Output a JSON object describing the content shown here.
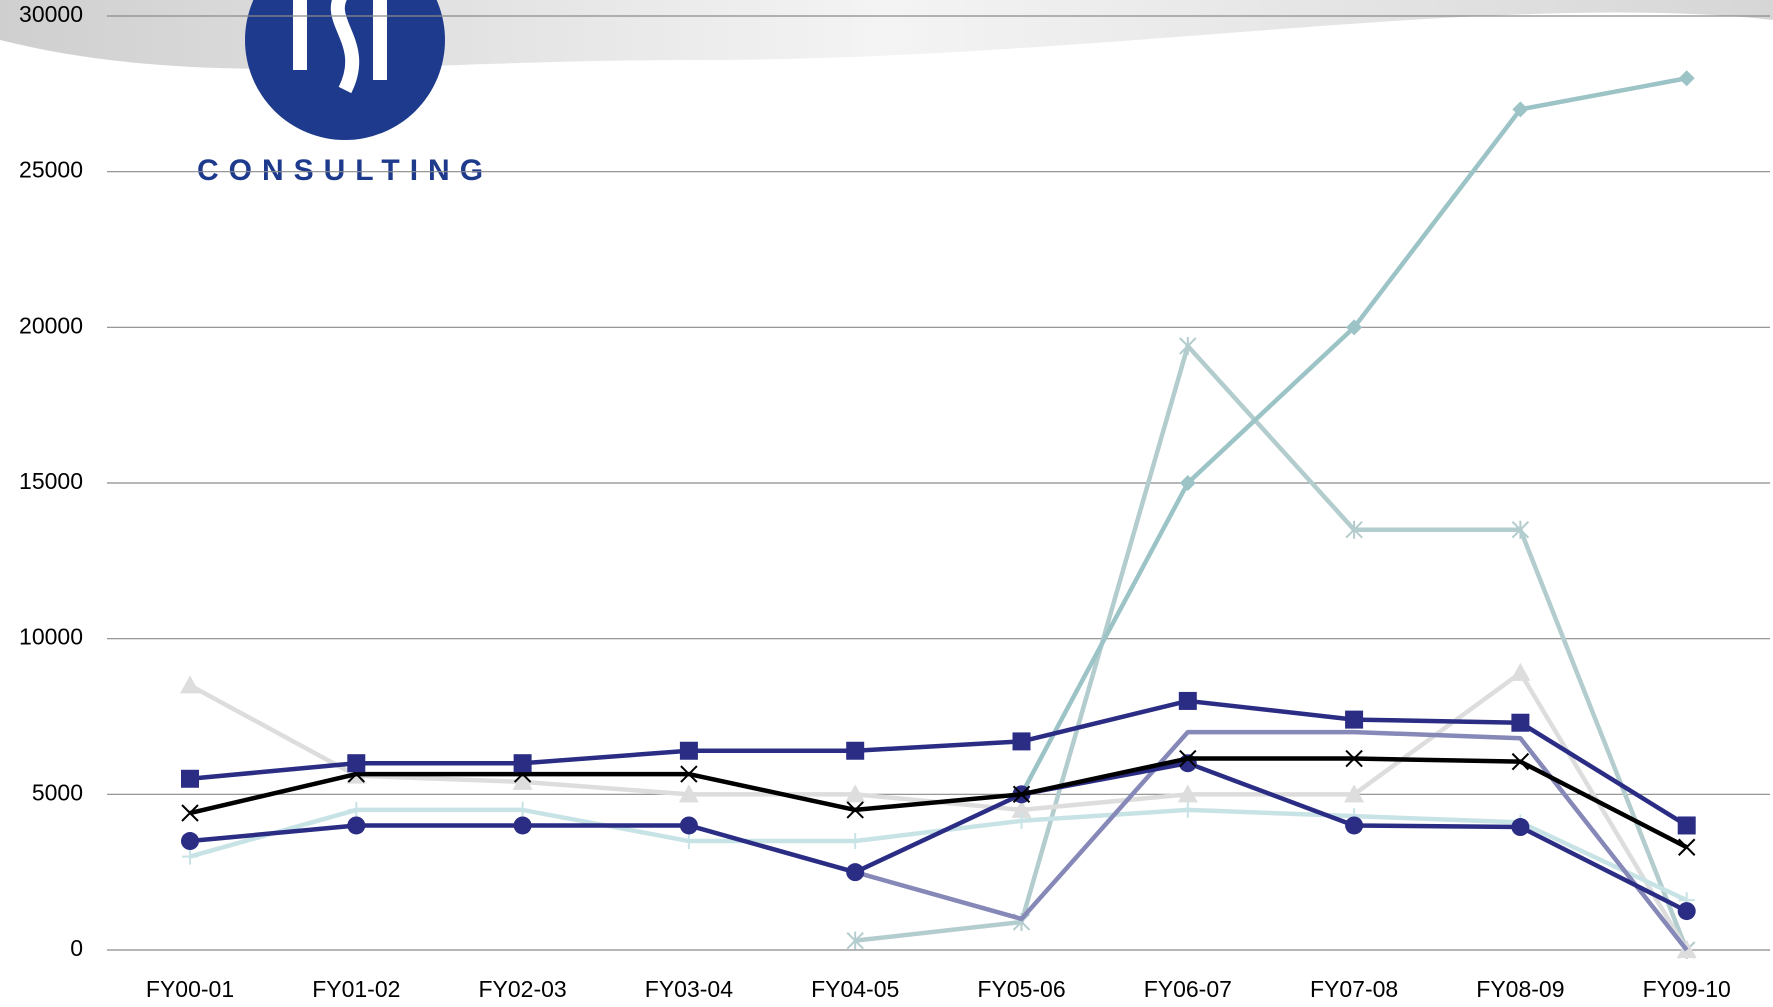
{
  "chart_data": {
    "type": "line",
    "logo_text": "CONSULTING",
    "categories": [
      "FY00-01",
      "FY01-02",
      "FY02-03",
      "FY03-04",
      "FY04-05",
      "FY05-06",
      "FY06-07",
      "FY07-08",
      "FY08-09",
      "FY09-10"
    ],
    "series": [
      {
        "color": "#b3cccd",
        "marker": "star",
        "values": [
          null,
          null,
          null,
          null,
          300,
          900,
          19400,
          13500,
          13500,
          0
        ]
      },
      {
        "color": "#dddddd",
        "marker": "triangle",
        "values": [
          8500,
          5600,
          5400,
          5000,
          5000,
          4500,
          5000,
          5000,
          8900,
          0
        ]
      },
      {
        "color": "#c8e3e6",
        "marker": "plus",
        "values": [
          3000,
          4500,
          4500,
          3500,
          3500,
          4150,
          4500,
          4300,
          4100,
          1600
        ]
      },
      {
        "color": "#8688b8",
        "marker": "none",
        "values": [
          null,
          null,
          null,
          null,
          2500,
          1000,
          7000,
          7000,
          6800,
          0
        ]
      },
      {
        "color": "#9cc3c5",
        "marker": "diamond",
        "values": [
          null,
          null,
          null,
          null,
          null,
          5000,
          15000,
          20000,
          27000,
          28000
        ]
      },
      {
        "color": "#2b2d84",
        "marker": "circle",
        "values": [
          3500,
          4000,
          4000,
          4000,
          2500,
          5000,
          6000,
          4000,
          3950,
          1250
        ]
      },
      {
        "color": "#000000",
        "marker": "x",
        "values": [
          4400,
          5650,
          5650,
          5650,
          4500,
          5000,
          6150,
          6150,
          6050,
          3300
        ]
      },
      {
        "color": "#2b2d84",
        "marker": "square",
        "values": [
          5500,
          6000,
          6000,
          6400,
          6400,
          6700,
          8000,
          7400,
          7300,
          4000
        ]
      }
    ],
    "ylim": [
      0,
      30000
    ],
    "yticks": [
      0,
      5000,
      10000,
      15000,
      20000,
      25000,
      30000
    ],
    "grid": true
  }
}
